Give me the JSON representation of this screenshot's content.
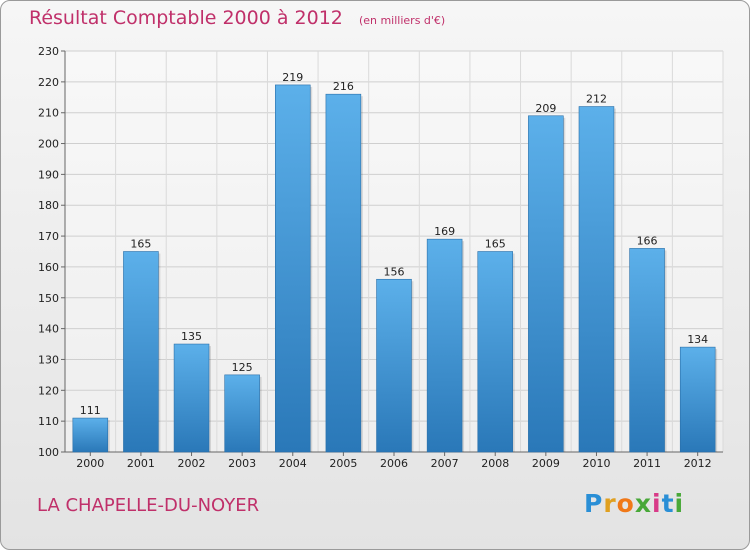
{
  "title": "Résultat Comptable 2000 à 2012",
  "unit": "(en milliers d'€)",
  "commune": "LA CHAPELLE-DU-NOYER",
  "logo": {
    "letters": [
      "P",
      "r",
      "o",
      "x",
      "i",
      "t",
      "i"
    ],
    "colors": [
      "#2a8fd6",
      "#e0a020",
      "#f07818",
      "#48a838",
      "#d83a88",
      "#2a8fd6",
      "#48a838"
    ]
  },
  "chart_data": {
    "type": "bar",
    "title": "Résultat Comptable 2000 à 2012",
    "subtitle": "(en milliers d'€)",
    "xlabel": "",
    "ylabel": "",
    "categories": [
      "2000",
      "2001",
      "2002",
      "2003",
      "2004",
      "2005",
      "2006",
      "2007",
      "2008",
      "2009",
      "2010",
      "2011",
      "2012"
    ],
    "values": [
      111,
      165,
      135,
      125,
      219,
      216,
      156,
      169,
      165,
      209,
      212,
      166,
      134
    ],
    "ylim": [
      100,
      230
    ],
    "yticks": [
      100,
      110,
      120,
      130,
      140,
      150,
      160,
      170,
      180,
      190,
      200,
      210,
      220,
      230
    ],
    "grid": true,
    "bar_color": "#3a93d8"
  }
}
